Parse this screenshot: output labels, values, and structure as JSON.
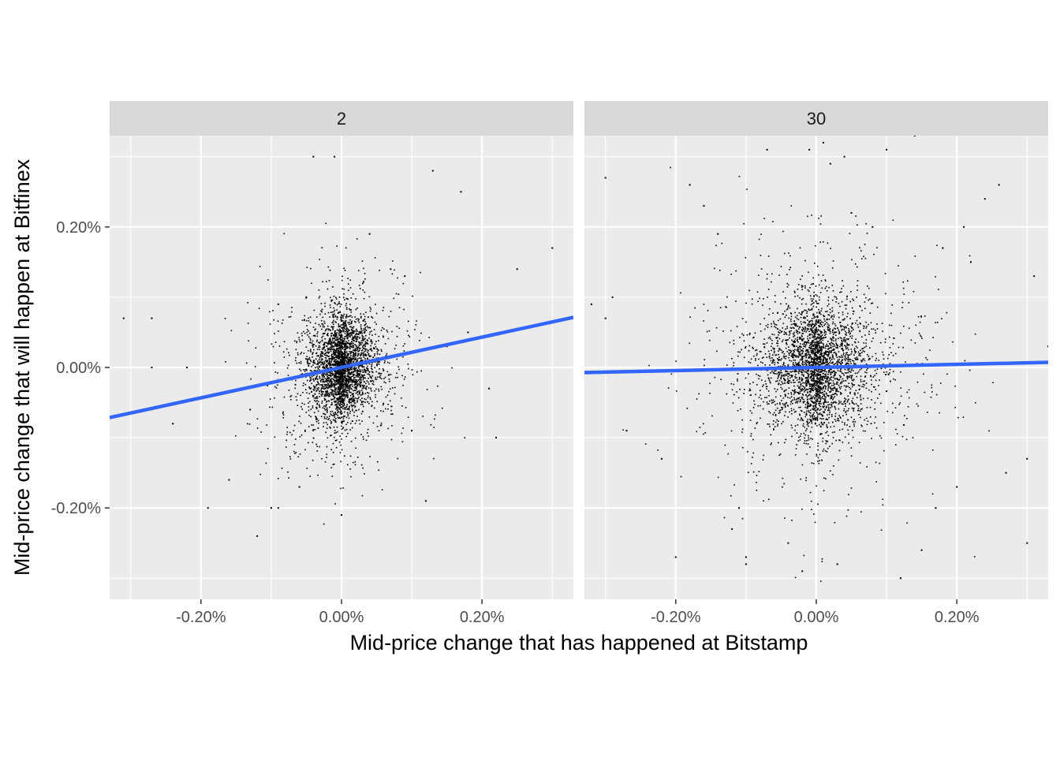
{
  "chart_data": {
    "type": "scatter",
    "xlabel": "Mid-price change that has happened at Bitstamp",
    "ylabel": "Mid-price change that will happen at Bitfinex",
    "xlim": [
      -0.33,
      0.33
    ],
    "ylim": [
      -0.33,
      0.33
    ],
    "x_ticks": [
      -0.2,
      0.0,
      0.2
    ],
    "x_tick_labels": [
      "-0.20%",
      "0.00%",
      "0.20%"
    ],
    "y_ticks": [
      0.2,
      0.0,
      -0.2
    ],
    "y_tick_labels": [
      "0.20%",
      "0.00%",
      "-0.20%"
    ],
    "grid": true,
    "point_color": "#000000",
    "fit_line_color": "#3366FF",
    "panel_background": "#EBEBEB",
    "strip_background": "#D9D9D9",
    "panels": [
      {
        "facet_label": "2",
        "fit_line": {
          "slope": 0.216,
          "intercept": 0.0
        },
        "dense_core": {
          "x_sd": 0.025,
          "y_sd": 0.035
        },
        "points": [
          [
            -0.31,
            0.07
          ],
          [
            -0.27,
            0.07
          ],
          [
            -0.27,
            0.0
          ],
          [
            -0.22,
            0.0
          ],
          [
            -0.24,
            -0.08
          ],
          [
            -0.19,
            -0.2
          ],
          [
            -0.16,
            -0.16
          ],
          [
            -0.12,
            -0.24
          ],
          [
            -0.1,
            -0.2
          ],
          [
            -0.09,
            -0.2
          ],
          [
            -0.09,
            0.09
          ],
          [
            -0.04,
            0.3
          ],
          [
            -0.01,
            0.3
          ],
          [
            0.04,
            0.19
          ],
          [
            0.13,
            0.28
          ],
          [
            0.17,
            0.25
          ],
          [
            0.3,
            0.17
          ],
          [
            0.25,
            0.14
          ],
          [
            0.22,
            -0.1
          ],
          [
            0.21,
            -0.03
          ],
          [
            -0.06,
            -0.17
          ],
          [
            0.0,
            -0.21
          ],
          [
            0.12,
            -0.19
          ],
          [
            0.07,
            0.14
          ],
          [
            0.09,
            0.13
          ],
          [
            0.1,
            -0.09
          ],
          [
            -0.05,
            0.1
          ],
          [
            -0.13,
            -0.06
          ],
          [
            0.15,
            0.03
          ],
          [
            0.18,
            0.05
          ]
        ]
      },
      {
        "facet_label": "30",
        "fit_line": {
          "slope": 0.022,
          "intercept": 0.0
        },
        "dense_core": {
          "x_sd": 0.04,
          "y_sd": 0.045
        },
        "points": [
          [
            -0.3,
            0.27
          ],
          [
            -0.29,
            0.1
          ],
          [
            -0.3,
            0.07
          ],
          [
            -0.32,
            0.09
          ],
          [
            -0.27,
            -0.09
          ],
          [
            -0.22,
            -0.13
          ],
          [
            -0.2,
            -0.27
          ],
          [
            -0.18,
            0.26
          ],
          [
            -0.16,
            0.23
          ],
          [
            -0.14,
            0.19
          ],
          [
            -0.12,
            -0.23
          ],
          [
            -0.1,
            -0.27
          ],
          [
            -0.11,
            -0.2
          ],
          [
            -0.1,
            -0.28
          ],
          [
            -0.07,
            0.31
          ],
          [
            -0.04,
            -0.25
          ],
          [
            -0.02,
            -0.29
          ],
          [
            -0.01,
            0.31
          ],
          [
            0.01,
            0.32
          ],
          [
            0.02,
            0.29
          ],
          [
            0.04,
            0.3
          ],
          [
            0.03,
            -0.28
          ],
          [
            0.05,
            0.22
          ],
          [
            0.08,
            0.2
          ],
          [
            0.1,
            0.31
          ],
          [
            0.14,
            0.33
          ],
          [
            0.12,
            -0.3
          ],
          [
            0.15,
            -0.26
          ],
          [
            0.18,
            0.17
          ],
          [
            0.21,
            0.2
          ],
          [
            0.24,
            0.24
          ],
          [
            0.26,
            0.26
          ],
          [
            0.22,
            0.15
          ],
          [
            0.3,
            -0.13
          ],
          [
            0.3,
            -0.25
          ],
          [
            0.31,
            0.13
          ],
          [
            0.33,
            0.03
          ],
          [
            0.27,
            -0.15
          ],
          [
            0.2,
            -0.17
          ],
          [
            0.17,
            -0.2
          ]
        ]
      }
    ]
  }
}
